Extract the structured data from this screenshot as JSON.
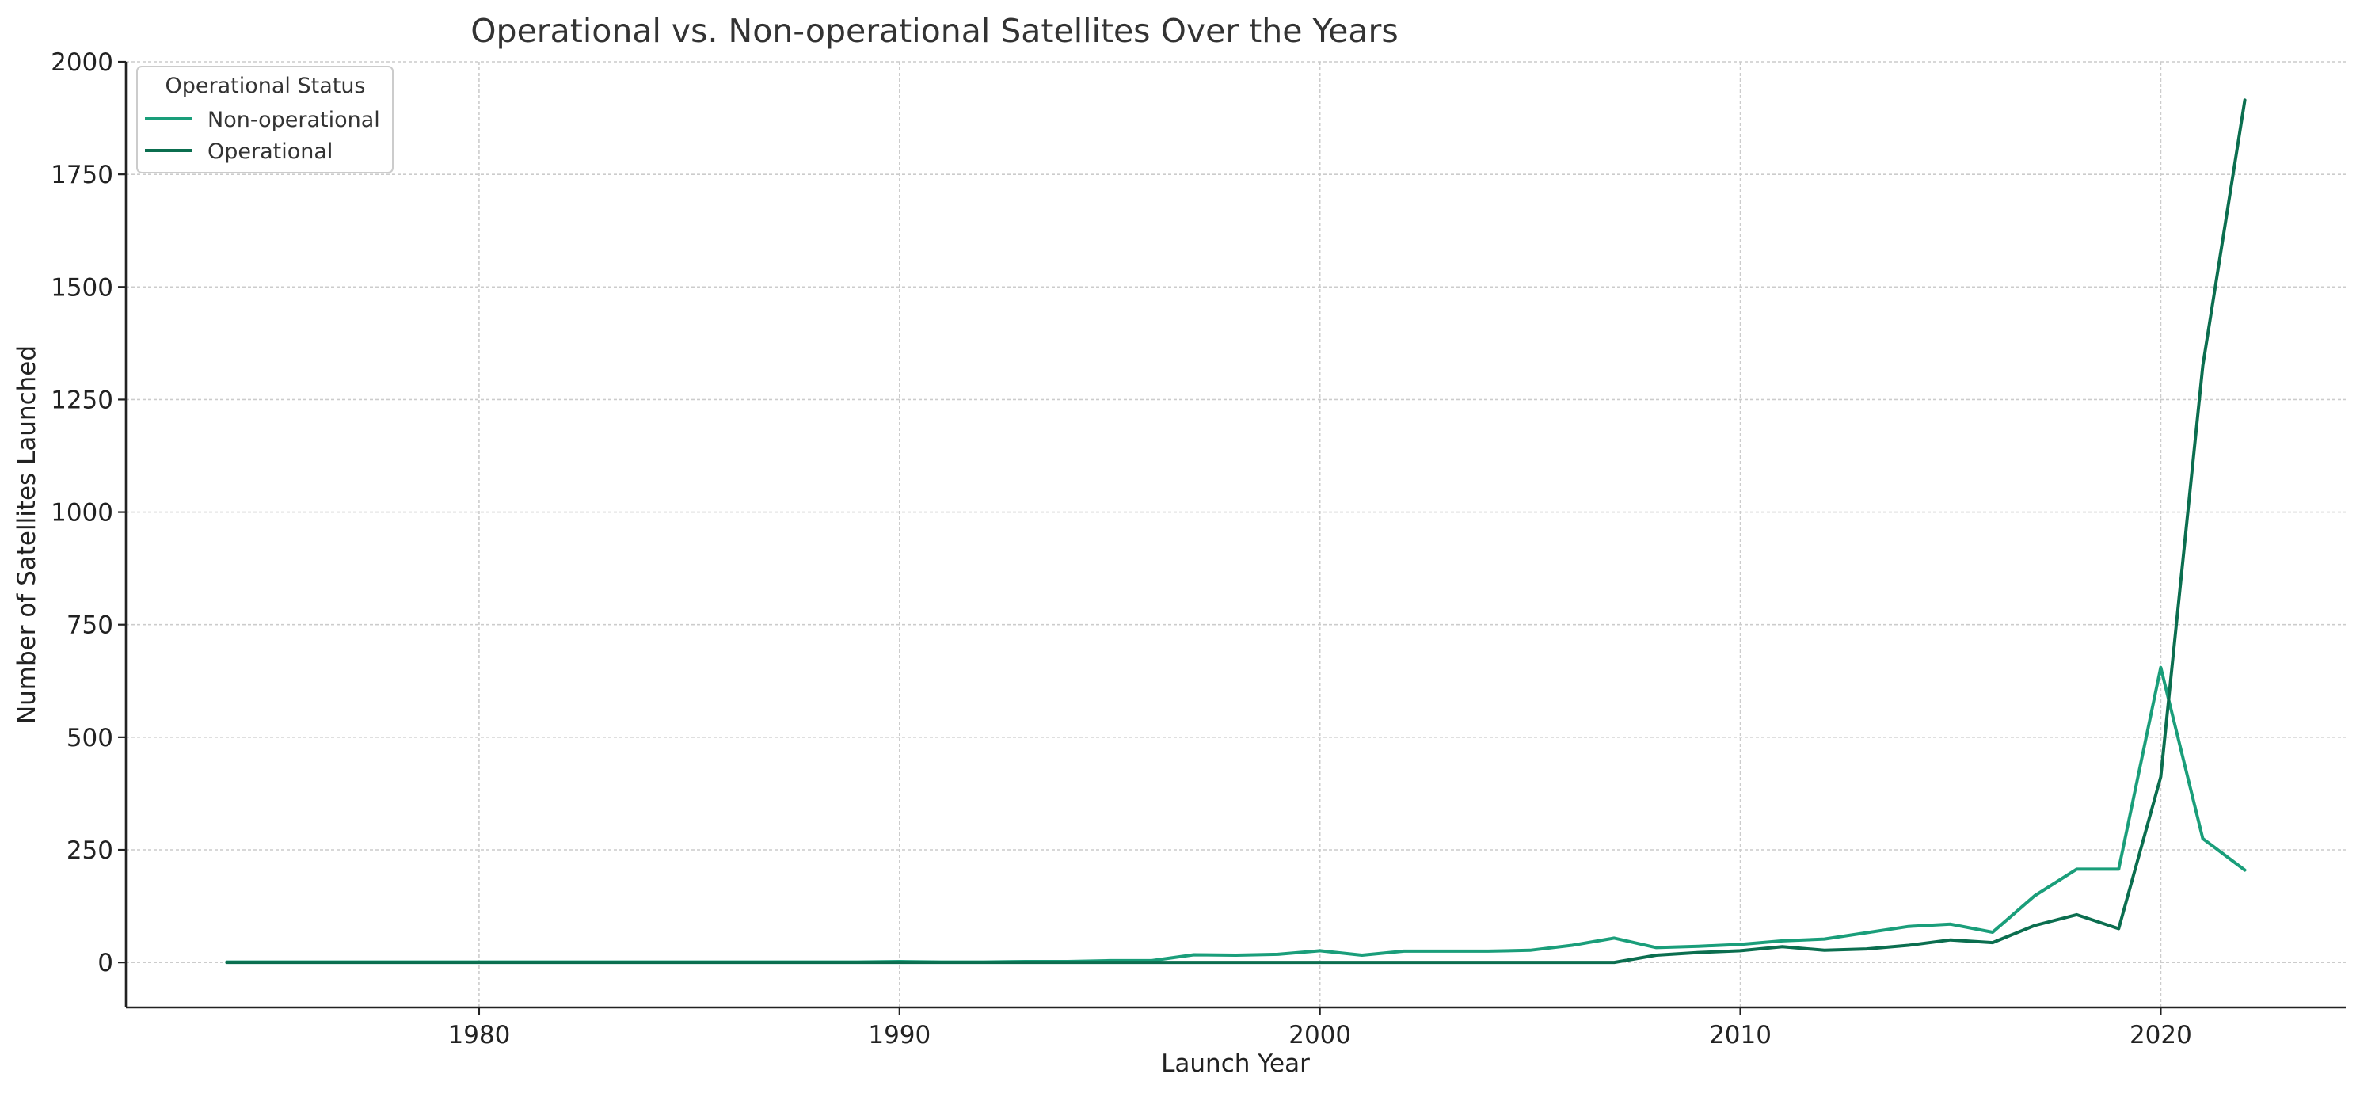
{
  "chart_data": {
    "type": "line",
    "title": "Operational vs. Non-operational Satellites Over the Years",
    "xlabel": "Launch Year",
    "ylabel": "Number of Satellites Launched",
    "xlim": [
      1971.6,
      2024.4
    ],
    "ylim": [
      -100,
      2000
    ],
    "xticks": [
      1980,
      1990,
      2000,
      2010,
      2020
    ],
    "yticks": [
      0,
      250,
      500,
      750,
      1000,
      1250,
      1500,
      1750,
      2000
    ],
    "grid": true,
    "legend": {
      "title": "Operational Status",
      "placement": "top-left"
    },
    "x": [
      1974,
      1975,
      1976,
      1977,
      1978,
      1979,
      1980,
      1981,
      1982,
      1983,
      1984,
      1985,
      1986,
      1987,
      1988,
      1989,
      1990,
      1991,
      1992,
      1993,
      1994,
      1995,
      1996,
      1997,
      1998,
      1999,
      2000,
      2001,
      2002,
      2003,
      2004,
      2005,
      2006,
      2007,
      2008,
      2009,
      2010,
      2011,
      2012,
      2013,
      2014,
      2015,
      2016,
      2017,
      2018,
      2019,
      2020,
      2021,
      2022
    ],
    "series": [
      {
        "name": "Non-operational",
        "color": "#1a9e7a",
        "values": [
          1,
          1,
          1,
          1,
          1,
          1,
          1,
          1,
          1,
          1,
          1,
          1,
          1,
          1,
          1,
          1,
          2,
          1,
          1,
          2,
          2,
          4,
          4,
          17,
          16,
          18,
          26,
          16,
          25,
          25,
          25,
          27,
          38,
          54,
          33,
          36,
          40,
          48,
          52,
          66,
          80,
          85,
          67,
          148,
          207,
          207,
          655,
          275,
          205
        ]
      },
      {
        "name": "Operational",
        "color": "#0b6e4f",
        "values": [
          0,
          0,
          0,
          0,
          0,
          0,
          0,
          0,
          0,
          0,
          0,
          0,
          0,
          0,
          0,
          0,
          0,
          0,
          0,
          0,
          0,
          0,
          0,
          0,
          0,
          0,
          0,
          0,
          0,
          0,
          0,
          0,
          0,
          0,
          16,
          22,
          26,
          35,
          27,
          30,
          38,
          50,
          44,
          82,
          106,
          75,
          412,
          1325,
          1915
        ]
      }
    ]
  }
}
